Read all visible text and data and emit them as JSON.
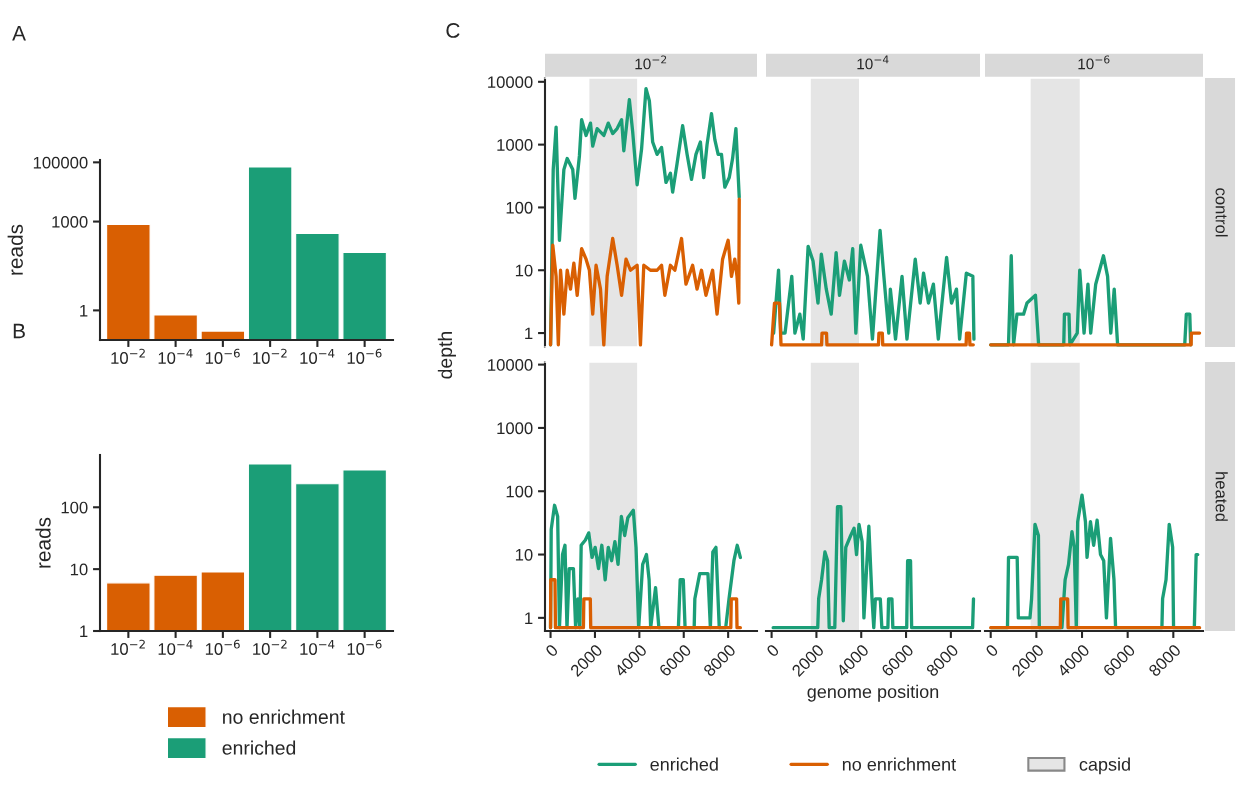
{
  "chart_data": [
    {
      "type": "bar",
      "title": "A",
      "ylabel": "reads",
      "log": true,
      "categories": [
        "10$^{−2}$",
        "10$^{−4}$",
        "10$^{−6}$",
        "10$^{−2}$",
        "10$^{−4}$",
        "10$^{−6}$"
      ],
      "values": [
        800,
        0.7,
        0.2,
        70000,
        400,
        90
      ],
      "colors": [
        "#d95f02",
        "#d95f02",
        "#d95f02",
        "#1b9e77",
        "#1b9e77",
        "#1b9e77"
      ],
      "ylim": [
        0.1,
        120000
      ],
      "yticks": [
        1,
        1000,
        100000
      ]
    },
    {
      "type": "bar",
      "title": "B",
      "ylabel": "reads",
      "log": true,
      "categories": [
        "10$^{−2}$",
        "10$^{−4}$",
        "10$^{−6}$",
        "10$^{−2}$",
        "10$^{−4}$",
        "10$^{−6}$"
      ],
      "series": [
        {
          "name": "no enrichment",
          "color": "#d95f02",
          "values": [
            6,
            8,
            9,
            null,
            null,
            null
          ]
        },
        {
          "name": "enriched",
          "color": "#1b9e77",
          "values": [
            null,
            null,
            null,
            500,
            240,
            400
          ]
        }
      ],
      "ylim": [
        1,
        700
      ],
      "yticks": [
        1,
        10,
        100
      ],
      "legend": "bottom"
    },
    {
      "type": "line",
      "title": "10$^{−2}$",
      "ylabel": "depth",
      "annotations": [
        "C"
      ],
      "log": true,
      "xlim": [
        -250,
        9300
      ],
      "xticks": [
        0,
        2000,
        4000,
        6000,
        8000
      ],
      "ylim": [
        0.6,
        11500
      ],
      "yticks": [
        1,
        10,
        100,
        1000,
        10000
      ],
      "tick_labels": "y",
      "bands": [
        {
          "axis": "x",
          "from": 1750,
          "to": 3900,
          "color": "#e5e5e5"
        }
      ],
      "series": [
        {
          "color": "#1b9e77",
          "x": [
            0,
            120,
            250,
            400,
            600,
            750,
            1000,
            1100,
            1300,
            1400,
            1600,
            1800,
            1900,
            2100,
            2400,
            2600,
            2800,
            3000,
            3200,
            3300,
            3550,
            3700,
            3900,
            4100,
            4300,
            4450,
            4600,
            4800,
            5000,
            5200,
            5400,
            5500,
            5700,
            5950,
            6150,
            6350,
            6550,
            6750,
            6900,
            7050,
            7250,
            7400,
            7550,
            7700,
            7850,
            8050,
            8200,
            8350,
            8500
          ],
          "values": [
            0.65,
            400,
            1900,
            30,
            400,
            600,
            400,
            140,
            660,
            2500,
            1400,
            2200,
            950,
            1800,
            1400,
            2200,
            1500,
            1800,
            2500,
            800,
            5200,
            1600,
            230,
            850,
            7800,
            5000,
            1100,
            700,
            900,
            250,
            350,
            175,
            500,
            2000,
            700,
            280,
            700,
            1100,
            300,
            1000,
            3100,
            1200,
            700,
            700,
            210,
            300,
            600,
            1800,
            145
          ]
        },
        {
          "color": "#d95f02",
          "x": [
            0,
            100,
            250,
            350,
            450,
            600,
            750,
            900,
            1050,
            1200,
            1400,
            1600,
            1750,
            1900,
            2050,
            2250,
            2400,
            2550,
            2800,
            3000,
            3200,
            3400,
            3600,
            3900,
            4050,
            4200,
            4500,
            4800,
            5000,
            5150,
            5400,
            5600,
            5900,
            6100,
            6400,
            6600,
            6800,
            7000,
            7300,
            7500,
            7750,
            8000,
            8150,
            8300,
            8400,
            8480,
            8500
          ],
          "values": [
            0.65,
            25,
            8,
            0.65,
            10,
            2,
            10,
            5,
            13,
            4,
            22,
            15,
            10,
            2,
            12,
            5,
            0.65,
            8,
            32,
            12,
            4,
            15,
            10,
            12,
            0.65,
            12,
            10,
            10,
            12,
            4,
            12,
            10,
            32,
            6,
            12,
            5,
            10,
            4,
            10,
            2,
            15,
            30,
            8,
            15,
            8,
            3,
            135
          ]
        }
      ]
    },
    {
      "type": "line",
      "title": "10$^{−4}$",
      "log": true,
      "xlim": [
        -250,
        9300
      ],
      "xticks": [
        0,
        2000,
        4000,
        6000,
        8000
      ],
      "ylim": [
        0.6,
        11500
      ],
      "yticks": [
        1,
        10,
        100,
        1000,
        10000
      ],
      "tick_labels": false,
      "bands": [
        {
          "axis": "x",
          "from": 1750,
          "to": 3900,
          "color": "#e5e5e5"
        }
      ],
      "series": [
        {
          "color": "#1b9e77",
          "x": [
            90,
            310,
            410,
            600,
            900,
            1040,
            1260,
            1410,
            1630,
            1850,
            2070,
            2220,
            2440,
            2660,
            2880,
            3030,
            3250,
            3470,
            3620,
            3760,
            3980,
            4280,
            4500,
            4840,
            5010,
            5230,
            5300,
            5530,
            5820,
            6040,
            6410,
            6630,
            6780,
            7000,
            7220,
            7440,
            7810,
            8030,
            8250,
            8390,
            8690,
            8980,
            9030
          ],
          "values": [
            1,
            10,
            1,
            1,
            8,
            1,
            2,
            0.8,
            24,
            14,
            3,
            18,
            5,
            2,
            19,
            4,
            14,
            7,
            22,
            1,
            25,
            8,
            0.8,
            43,
            8,
            1,
            5,
            0.8,
            8,
            0.8,
            15,
            3,
            9,
            3,
            6,
            0.8,
            16,
            3,
            5,
            0.8,
            9,
            8,
            0.8
          ]
        },
        {
          "color": "#d95f02",
          "x": [
            0,
            130,
            350,
            420,
            2230,
            2250,
            2450,
            2470,
            4770,
            4790,
            4940,
            4960,
            8680,
            8700,
            8830,
            8850,
            9000
          ],
          "values": [
            0.65,
            3,
            3,
            0.65,
            0.65,
            1,
            1,
            0.65,
            0.65,
            1,
            1,
            0.65,
            0.65,
            1,
            1,
            0.65,
            0.65
          ]
        }
      ]
    },
    {
      "type": "line",
      "title": "10$^{−6}$",
      "annotations": [
        "control"
      ],
      "log": true,
      "xlim": [
        -250,
        9300
      ],
      "xticks": [
        0,
        2000,
        4000,
        6000,
        8000
      ],
      "ylim": [
        0.6,
        11500
      ],
      "yticks": [
        1,
        10,
        100,
        1000,
        10000
      ],
      "tick_labels": false,
      "bands": [
        {
          "axis": "x",
          "from": 1750,
          "to": 3900,
          "color": "#e5e5e5"
        }
      ],
      "series": [
        {
          "color": "#1b9e77",
          "x": [
            0,
            780,
            900,
            1000,
            1150,
            1440,
            1590,
            1960,
            2100,
            3200,
            3230,
            3430,
            3470,
            3790,
            3900,
            4090,
            4260,
            4380,
            4600,
            4940,
            5120,
            5260,
            5410,
            5560,
            8500,
            8570,
            8720,
            8760
          ],
          "values": [
            0.65,
            0.65,
            17,
            0.65,
            2,
            2,
            3,
            4,
            0.65,
            0.65,
            2,
            2,
            0.65,
            1,
            10,
            1,
            6,
            1,
            6,
            17,
            8,
            1,
            5,
            0.65,
            0.65,
            2,
            2,
            0.65
          ]
        },
        {
          "color": "#d95f02",
          "x": [
            0,
            1000,
            2000,
            3000,
            4000,
            5000,
            6000,
            7000,
            8000,
            8780,
            8790,
            9150
          ],
          "values": [
            0.65,
            0.65,
            0.65,
            0.65,
            0.65,
            0.65,
            0.65,
            0.65,
            0.65,
            0.65,
            1,
            1
          ]
        }
      ]
    },
    {
      "type": "line",
      "log": true,
      "xlim": [
        -250,
        9300
      ],
      "xticks": [
        0,
        2000,
        4000,
        6000,
        8000
      ],
      "ylim": [
        0.62,
        11000
      ],
      "yticks": [
        1,
        10,
        100,
        1000,
        10000
      ],
      "bands": [
        {
          "axis": "x",
          "from": 1750,
          "to": 3900,
          "color": "#e5e5e5"
        }
      ],
      "series": [
        {
          "color": "#1b9e77",
          "x": [
            0,
            30,
            180,
            320,
            400,
            540,
            650,
            740,
            840,
            1030,
            1130,
            1230,
            1320,
            1380,
            1570,
            1720,
            1870,
            2010,
            2160,
            2310,
            2460,
            2600,
            2750,
            2900,
            3040,
            3190,
            3340,
            3480,
            3730,
            3850,
            3970,
            4150,
            4320,
            4440,
            4510,
            4730,
            4880,
            5760,
            5840,
            5980,
            6060,
            6470,
            6500,
            6720,
            7090,
            7200,
            7310,
            7450,
            7600,
            7890,
            8040,
            8260,
            8410,
            8550
          ],
          "values": [
            0.7,
            25,
            60,
            40,
            0.7,
            10,
            14,
            0.7,
            6,
            6,
            0.7,
            2,
            0.7,
            14,
            17,
            22,
            9,
            13,
            6,
            14,
            4,
            13,
            8,
            16,
            7,
            40,
            20,
            38,
            50,
            13,
            0.7,
            7,
            10,
            4,
            0.7,
            3,
            0.7,
            0.7,
            4,
            4,
            0.7,
            0.7,
            2,
            5,
            5,
            0.7,
            11,
            13,
            0.7,
            0.7,
            2,
            8,
            14,
            9
          ]
        },
        {
          "color": "#d95f02",
          "x": [
            0,
            10,
            200,
            220,
            1480,
            1500,
            1790,
            1810,
            8120,
            8140,
            8380,
            8400,
            8550
          ],
          "values": [
            0.7,
            4,
            4,
            0.7,
            0.7,
            2,
            2,
            0.7,
            0.7,
            2,
            2,
            0.7,
            0.7
          ]
        }
      ]
    },
    {
      "type": "line",
      "xlabel": "genome position",
      "log": true,
      "xlim": [
        -250,
        9300
      ],
      "xticks": [
        0,
        2000,
        4000,
        6000,
        8000
      ],
      "ylim": [
        0.62,
        11000
      ],
      "yticks": [
        1,
        10,
        100,
        1000,
        10000
      ],
      "tick_labels": "x",
      "bands": [
        {
          "axis": "x",
          "from": 1750,
          "to": 3900,
          "color": "#e5e5e5"
        }
      ],
      "series": [
        {
          "color": "#1b9e77",
          "x": [
            70,
            2060,
            2100,
            2230,
            2380,
            2500,
            2570,
            2820,
            2940,
            3090,
            3200,
            3310,
            3530,
            3680,
            3790,
            3900,
            4040,
            4120,
            4340,
            4480,
            4560,
            4630,
            4850,
            4920,
            5190,
            5220,
            5370,
            5410,
            6030,
            6070,
            6200,
            6250,
            8970,
            9010
          ],
          "values": [
            0.7,
            0.7,
            2,
            4,
            11,
            8,
            0.7,
            0.7,
            57,
            57,
            0.9,
            13,
            20,
            26,
            10,
            30,
            16,
            1,
            28,
            2,
            0.7,
            2,
            2,
            0.7,
            0.7,
            2,
            2,
            0.7,
            0.7,
            8,
            8,
            0.7,
            0.7,
            2
          ]
        }
      ]
    },
    {
      "type": "line",
      "annotations": [
        "heated"
      ],
      "log": true,
      "xlim": [
        -250,
        9300
      ],
      "xticks": [
        0,
        2000,
        4000,
        6000,
        8000
      ],
      "ylim": [
        0.62,
        11000
      ],
      "yticks": [
        1,
        10,
        100,
        1000,
        10000
      ],
      "tick_labels": "x",
      "legend": "bottom",
      "bands": [
        {
          "axis": "x",
          "from": 1750,
          "to": 3900,
          "color": "#e5e5e5",
          "label": "capsid"
        }
      ],
      "series": [
        {
          "name": "enriched",
          "color": "#1b9e77",
          "x": [
            30,
            735,
            780,
            1160,
            1210,
            1720,
            1790,
            1940,
            2090,
            2130,
            3120,
            3260,
            3410,
            3560,
            3660,
            3750,
            3810,
            4000,
            4150,
            4220,
            4370,
            4510,
            4660,
            4810,
            4950,
            5070,
            5250,
            5400,
            5470,
            7500,
            7530,
            7680,
            7820,
            7970,
            8010,
            8920,
            9000,
            9070
          ],
          "values": [
            0.7,
            0.7,
            9,
            9,
            1,
            1,
            2,
            30,
            20,
            0.7,
            0.7,
            4,
            7,
            23,
            13,
            0.7,
            33,
            87,
            33,
            9,
            33,
            14,
            35,
            10,
            8,
            1,
            18,
            4,
            0.7,
            0.7,
            2,
            4,
            30,
            13,
            0.7,
            0.7,
            10,
            10
          ]
        },
        {
          "name": "no enrichment",
          "color": "#d95f02",
          "x": [
            0,
            3050,
            3070,
            3370,
            3390,
            9150
          ],
          "values": [
            0.7,
            0.7,
            2,
            2,
            0.7,
            0.7
          ]
        }
      ]
    }
  ]
}
